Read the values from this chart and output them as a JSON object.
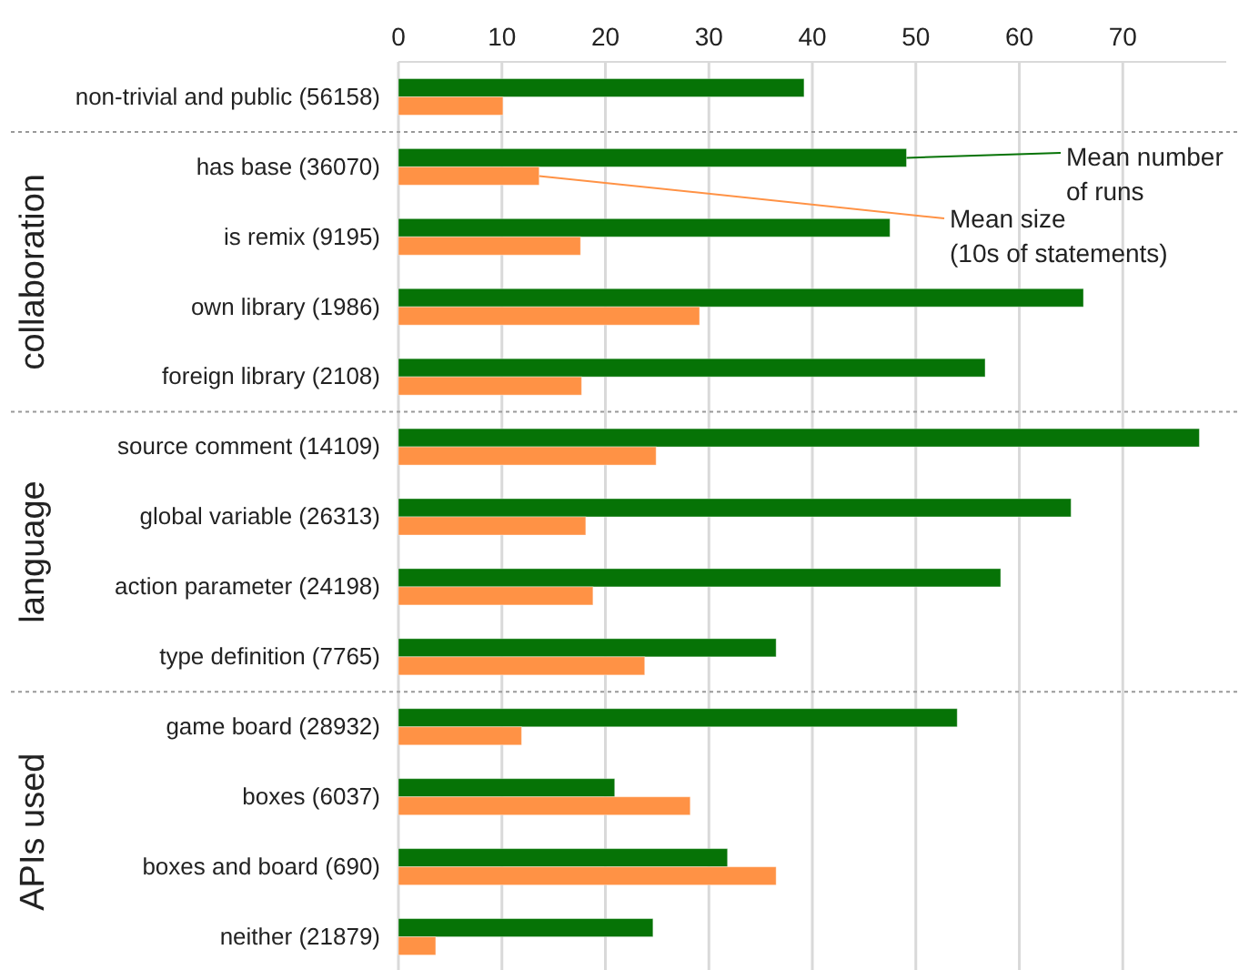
{
  "chart_data": {
    "type": "bar",
    "orientation": "horizontal",
    "categories": [
      "non-trivial and public (56158)",
      "has base (36070)",
      "is remix (9195)",
      "own library (1986)",
      "foreign library (2108)",
      "source comment (14109)",
      "global variable (26313)",
      "action parameter (24198)",
      "type definition (7765)",
      "game board (28932)",
      "boxes (6037)",
      "boxes and board (690)",
      "neither (21879)"
    ],
    "series": [
      {
        "name": "Mean number of runs",
        "color": "#067306",
        "values": [
          39.2,
          49.1,
          47.5,
          66.2,
          56.7,
          77.4,
          65.0,
          58.2,
          36.5,
          54.0,
          20.9,
          31.8,
          24.6
        ]
      },
      {
        "name": "Mean size (10s of statements)",
        "color": "#ff9245",
        "values": [
          10.1,
          13.6,
          17.6,
          29.1,
          17.7,
          24.9,
          18.1,
          18.8,
          23.8,
          11.9,
          28.2,
          36.5,
          3.6
        ]
      }
    ],
    "xlim": [
      0,
      80
    ],
    "xticks": [
      0,
      10,
      20,
      30,
      40,
      50,
      60,
      70
    ],
    "grid": "x",
    "legend": false,
    "annotations": [
      "collaboration",
      "language",
      "APIs used"
    ]
  }
}
